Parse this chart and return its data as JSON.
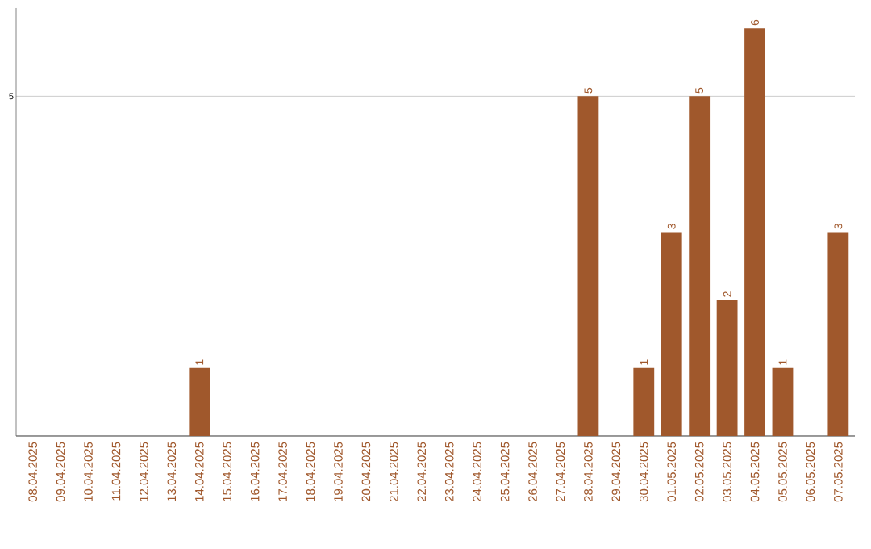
{
  "chart_data": {
    "type": "bar",
    "categories": [
      "08.04.2025",
      "09.04.2025",
      "10.04.2025",
      "11.04.2025",
      "12.04.2025",
      "13.04.2025",
      "14.04.2025",
      "15.04.2025",
      "16.04.2025",
      "17.04.2025",
      "18.04.2025",
      "19.04.2025",
      "20.04.2025",
      "21.04.2025",
      "22.04.2025",
      "23.04.2025",
      "24.04.2025",
      "25.04.2025",
      "26.04.2025",
      "27.04.2025",
      "28.04.2025",
      "29.04.2025",
      "30.04.2025",
      "01.05.2025",
      "02.05.2025",
      "03.05.2025",
      "04.05.2025",
      "05.05.2025",
      "06.05.2025",
      "07.05.2025"
    ],
    "values": [
      0,
      0,
      0,
      0,
      0,
      0,
      1,
      0,
      0,
      0,
      0,
      0,
      0,
      0,
      0,
      0,
      0,
      0,
      0,
      0,
      5,
      0,
      1,
      3,
      5,
      2,
      6,
      1,
      0,
      3
    ],
    "value_labels": [
      null,
      null,
      null,
      null,
      null,
      null,
      "1",
      null,
      null,
      null,
      null,
      null,
      null,
      null,
      null,
      null,
      null,
      null,
      null,
      null,
      "5",
      null,
      "1",
      "3",
      "5",
      "2",
      "6",
      "1",
      null,
      "3"
    ],
    "color": "#a0582c",
    "ylim": [
      0,
      6.3
    ],
    "yticks": [
      5
    ],
    "grid": "y"
  }
}
